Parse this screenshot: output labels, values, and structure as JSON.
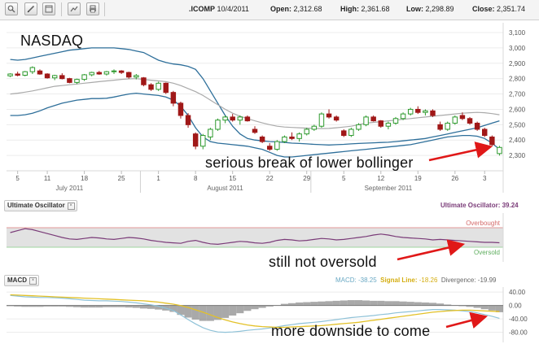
{
  "header": {
    "symbol": ".ICOMP",
    "date": "10/4/2011",
    "open_label": "Open:",
    "open": "2,312.68",
    "high_label": "High:",
    "high": "2,361.68",
    "low_label": "Low:",
    "low": "2,298.89",
    "close_label": "Close:",
    "close": "2,351.74"
  },
  "toolbar": [
    {
      "icon": "zoom-icon"
    },
    {
      "icon": "pencil-icon"
    },
    {
      "icon": "window-icon"
    },
    {
      "icon": "line-chart-icon"
    },
    {
      "icon": "print-icon"
    }
  ],
  "panels": {
    "ultimate": {
      "title": "Ultimate Oscillator",
      "info_label": "Ultimate Oscillator:",
      "info_value": "39.24",
      "overbought": "Overbought",
      "oversold": "Oversold"
    },
    "macd": {
      "title": "MACD",
      "macd_label": "MACD:",
      "macd_value": "-38.25",
      "signal_label": "Signal Line:",
      "signal_value": "-18.26",
      "div_label": "Divergence:",
      "div_value": "-19.99"
    }
  },
  "annotations": {
    "main": "NASDAQ",
    "bollinger": "serious break of lower bollinger",
    "oversold": "still not oversold",
    "downside": "more downside to come"
  },
  "colors": {
    "bollinger_band": "#2e6f9a",
    "moving_average": "#aaaaaa",
    "up_candle": "#2e9a2e",
    "down_candle": "#a01818",
    "oscillator": "#7a3b78",
    "macd_line": "#8fc2d8",
    "signal_line": "#e3c128",
    "histogram": "#8c8c8c",
    "arrow": "#e01818"
  },
  "chart_data": [
    {
      "type": "candlestick",
      "title": "NASDAQ",
      "ylim": [
        2200,
        3100
      ],
      "y_ticks": [
        "3,100",
        "3,000",
        "2,900",
        "2,800",
        "2,700",
        "2,600",
        "2,500",
        "2,400",
        "2,300"
      ],
      "y_tick_values": [
        3100,
        3000,
        2900,
        2800,
        2700,
        2600,
        2500,
        2400,
        2300
      ],
      "x_tick_labels": [
        "5",
        "11",
        "18",
        "25",
        "1",
        "8",
        "15",
        "22",
        "29",
        "5",
        "12",
        "19",
        "26",
        "3"
      ],
      "x_tick_index": [
        1,
        5,
        10,
        15,
        20,
        25,
        30,
        35,
        40,
        45,
        50,
        55,
        60,
        64
      ],
      "month_labels": [
        {
          "label": "July 2011",
          "index": 8
        },
        {
          "label": "August 2011",
          "index": 29
        },
        {
          "label": "September 2011",
          "index": 51
        }
      ],
      "month_dividers": [
        18,
        41
      ],
      "candles": [
        [
          2818,
          2835,
          2810,
          2830
        ],
        [
          2830,
          2845,
          2815,
          2822
        ],
        [
          2822,
          2850,
          2815,
          2845
        ],
        [
          2845,
          2880,
          2830,
          2872
        ],
        [
          2850,
          2860,
          2825,
          2830
        ],
        [
          2830,
          2835,
          2800,
          2805
        ],
        [
          2805,
          2825,
          2790,
          2820
        ],
        [
          2820,
          2835,
          2795,
          2800
        ],
        [
          2800,
          2805,
          2770,
          2775
        ],
        [
          2775,
          2800,
          2765,
          2795
        ],
        [
          2795,
          2830,
          2785,
          2825
        ],
        [
          2825,
          2845,
          2815,
          2840
        ],
        [
          2840,
          2850,
          2825,
          2830
        ],
        [
          2830,
          2850,
          2820,
          2845
        ],
        [
          2845,
          2860,
          2830,
          2850
        ],
        [
          2850,
          2855,
          2830,
          2840
        ],
        [
          2840,
          2845,
          2800,
          2810
        ],
        [
          2810,
          2830,
          2795,
          2820
        ],
        [
          2805,
          2810,
          2750,
          2760
        ],
        [
          2760,
          2770,
          2720,
          2730
        ],
        [
          2730,
          2780,
          2720,
          2770
        ],
        [
          2770,
          2775,
          2700,
          2710
        ],
        [
          2710,
          2720,
          2620,
          2640
        ],
        [
          2640,
          2650,
          2540,
          2560
        ],
        [
          2560,
          2575,
          2480,
          2500
        ],
        [
          2440,
          2450,
          2340,
          2360
        ],
        [
          2360,
          2440,
          2340,
          2430
        ],
        [
          2420,
          2480,
          2400,
          2470
        ],
        [
          2470,
          2540,
          2460,
          2530
        ],
        [
          2530,
          2560,
          2510,
          2550
        ],
        [
          2550,
          2570,
          2520,
          2530
        ],
        [
          2530,
          2560,
          2500,
          2550
        ],
        [
          2550,
          2560,
          2520,
          2525
        ],
        [
          2470,
          2490,
          2440,
          2450
        ],
        [
          2420,
          2430,
          2380,
          2390
        ],
        [
          2360,
          2380,
          2330,
          2340
        ],
        [
          2340,
          2400,
          2330,
          2390
        ],
        [
          2390,
          2430,
          2380,
          2420
        ],
        [
          2420,
          2450,
          2400,
          2410
        ],
        [
          2410,
          2450,
          2390,
          2440
        ],
        [
          2440,
          2480,
          2430,
          2470
        ],
        [
          2470,
          2500,
          2460,
          2490
        ],
        [
          2490,
          2580,
          2480,
          2570
        ],
        [
          2570,
          2600,
          2540,
          2550
        ],
        [
          2550,
          2560,
          2520,
          2530
        ],
        [
          2460,
          2470,
          2420,
          2430
        ],
        [
          2430,
          2480,
          2420,
          2470
        ],
        [
          2470,
          2510,
          2460,
          2500
        ],
        [
          2500,
          2560,
          2490,
          2550
        ],
        [
          2550,
          2560,
          2520,
          2525
        ],
        [
          2525,
          2530,
          2480,
          2490
        ],
        [
          2490,
          2520,
          2470,
          2510
        ],
        [
          2510,
          2550,
          2500,
          2540
        ],
        [
          2540,
          2580,
          2530,
          2570
        ],
        [
          2570,
          2610,
          2560,
          2600
        ],
        [
          2600,
          2620,
          2570,
          2580
        ],
        [
          2580,
          2600,
          2560,
          2590
        ],
        [
          2590,
          2600,
          2550,
          2560
        ],
        [
          2500,
          2520,
          2460,
          2470
        ],
        [
          2470,
          2520,
          2460,
          2510
        ],
        [
          2510,
          2560,
          2500,
          2550
        ],
        [
          2560,
          2580,
          2530,
          2540
        ],
        [
          2540,
          2550,
          2500,
          2510
        ],
        [
          2510,
          2520,
          2460,
          2470
        ],
        [
          2470,
          2480,
          2420,
          2430
        ],
        [
          2420,
          2430,
          2360,
          2370
        ],
        [
          2312,
          2362,
          2299,
          2352
        ]
      ],
      "upper_band": [
        2925,
        2920,
        2925,
        2935,
        2945,
        2955,
        2965,
        2975,
        2985,
        2990,
        2995,
        3000,
        3000,
        3000,
        3000,
        2995,
        2990,
        2980,
        2970,
        2945,
        2920,
        2905,
        2895,
        2890,
        2880,
        2860,
        2800,
        2720,
        2640,
        2560,
        2490,
        2440,
        2410,
        2400,
        2395,
        2390,
        2388,
        2385,
        2380,
        2378,
        2375,
        2372,
        2370,
        2368,
        2370,
        2372,
        2375,
        2378,
        2380,
        2382,
        2384,
        2386,
        2390,
        2395,
        2400,
        2405,
        2410,
        2420,
        2430,
        2440,
        2450,
        2460,
        2470,
        2480,
        2495,
        2510,
        2525
      ],
      "middle_band": [
        2700,
        2705,
        2712,
        2720,
        2730,
        2740,
        2750,
        2755,
        2760,
        2765,
        2770,
        2775,
        2780,
        2785,
        2790,
        2795,
        2798,
        2800,
        2795,
        2790,
        2785,
        2780,
        2770,
        2755,
        2735,
        2715,
        2690,
        2660,
        2630,
        2600,
        2575,
        2555,
        2540,
        2525,
        2512,
        2500,
        2490,
        2485,
        2482,
        2480,
        2478,
        2476,
        2475,
        2476,
        2480,
        2485,
        2490,
        2500,
        2510,
        2515,
        2520,
        2525,
        2530,
        2535,
        2540,
        2545,
        2550,
        2555,
        2560,
        2565,
        2570,
        2575,
        2578,
        2580,
        2578,
        2572,
        2565
      ],
      "lower_band": [
        2560,
        2560,
        2565,
        2575,
        2590,
        2610,
        2625,
        2640,
        2650,
        2660,
        2665,
        2670,
        2670,
        2672,
        2680,
        2690,
        2700,
        2705,
        2700,
        2695,
        2690,
        2680,
        2660,
        2620,
        2560,
        2480,
        2420,
        2390,
        2380,
        2375,
        2370,
        2365,
        2360,
        2350,
        2340,
        2320,
        2300,
        2290,
        2290,
        2295,
        2300,
        2305,
        2310,
        2315,
        2320,
        2325,
        2330,
        2335,
        2340,
        2345,
        2350,
        2355,
        2360,
        2365,
        2370,
        2380,
        2390,
        2400,
        2410,
        2420,
        2425,
        2430,
        2430,
        2425,
        2410,
        2380,
        2340
      ]
    },
    {
      "type": "line",
      "title": "Ultimate Oscillator",
      "series": [
        {
          "name": "Ultimate Oscillator",
          "values": [
            60,
            64,
            68,
            66,
            62,
            58,
            54,
            50,
            47,
            46,
            48,
            50,
            49,
            47,
            46,
            48,
            50,
            49,
            47,
            44,
            42,
            40,
            39,
            38,
            42,
            44,
            40,
            37,
            36,
            38,
            40,
            42,
            41,
            39,
            38,
            40,
            44,
            46,
            45,
            43,
            44,
            46,
            48,
            47,
            45,
            46,
            48,
            50,
            52,
            55,
            57,
            55,
            52,
            50,
            49,
            48,
            47,
            45,
            46,
            45,
            44,
            43,
            42,
            41,
            40,
            40,
            39.24
          ]
        }
      ],
      "ylim": [
        0,
        100
      ],
      "levels": {
        "overbought": 70,
        "oversold": 30
      }
    },
    {
      "type": "line",
      "title": "MACD",
      "y_ticks": [
        "40.00",
        "0.00",
        "-40.00",
        "-80.00"
      ],
      "y_tick_values": [
        40,
        0,
        -40,
        -80
      ],
      "ylim": [
        -110,
        55
      ],
      "series": [
        {
          "name": "MACD",
          "values": [
            30,
            28,
            26,
            25,
            24,
            24,
            23,
            22,
            20,
            18,
            16,
            15,
            14,
            14,
            13,
            12,
            10,
            8,
            5,
            2,
            -2,
            -8,
            -15,
            -28,
            -42,
            -55,
            -66,
            -74,
            -79,
            -80,
            -79,
            -77,
            -74,
            -72,
            -70,
            -67,
            -64,
            -60,
            -57,
            -54,
            -52,
            -50,
            -48,
            -45,
            -42,
            -39,
            -36,
            -34,
            -32,
            -30,
            -27,
            -25,
            -22,
            -20,
            -18,
            -16,
            -14,
            -12,
            -12,
            -13,
            -14,
            -16,
            -18,
            -22,
            -27,
            -32,
            -38.25
          ]
        },
        {
          "name": "Signal Line",
          "values": [
            32,
            31,
            30,
            29,
            28,
            27,
            26,
            25,
            24,
            23,
            22,
            21,
            20,
            19,
            18,
            17,
            16,
            15,
            14,
            12,
            10,
            7,
            4,
            0,
            -6,
            -13,
            -20,
            -28,
            -36,
            -43,
            -49,
            -54,
            -58,
            -61,
            -63,
            -64,
            -65,
            -65,
            -64,
            -63,
            -62,
            -61,
            -60,
            -58,
            -56,
            -54,
            -52,
            -50,
            -47,
            -44,
            -41,
            -38,
            -35,
            -32,
            -29,
            -26,
            -23,
            -20,
            -18,
            -16,
            -15,
            -14,
            -14,
            -15,
            -16,
            -17,
            -18.26
          ]
        },
        {
          "name": "Divergence",
          "values": [
            -2,
            -3,
            -4,
            -4,
            -4,
            -3,
            -3,
            -3,
            -4,
            -5,
            -6,
            -6,
            -6,
            -5,
            -5,
            -5,
            -6,
            -7,
            -9,
            -10,
            -12,
            -15,
            -19,
            -28,
            -36,
            -42,
            -46,
            -46,
            -43,
            -37,
            -30,
            -23,
            -16,
            -11,
            -7,
            -3,
            1,
            5,
            7,
            9,
            10,
            11,
            12,
            13,
            14,
            15,
            16,
            16,
            15,
            14,
            14,
            13,
            13,
            12,
            11,
            10,
            9,
            8,
            6,
            3,
            1,
            -2,
            -4,
            -7,
            -11,
            -15,
            -19.99
          ]
        }
      ]
    }
  ]
}
